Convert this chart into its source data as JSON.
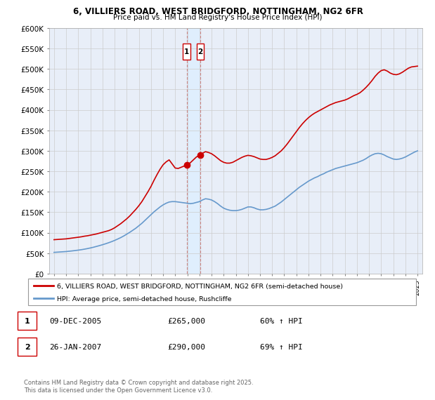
{
  "title1": "6, VILLIERS ROAD, WEST BRIDGFORD, NOTTINGHAM, NG2 6FR",
  "title2": "Price paid vs. HM Land Registry's House Price Index (HPI)",
  "legend_line1": "6, VILLIERS ROAD, WEST BRIDGFORD, NOTTINGHAM, NG2 6FR (semi-detached house)",
  "legend_line2": "HPI: Average price, semi-detached house, Rushcliffe",
  "footnote": "Contains HM Land Registry data © Crown copyright and database right 2025.\nThis data is licensed under the Open Government Licence v3.0.",
  "sale1_label": "1",
  "sale1_date": "09-DEC-2005",
  "sale1_price": "£265,000",
  "sale1_hpi": "60% ↑ HPI",
  "sale2_label": "2",
  "sale2_date": "26-JAN-2007",
  "sale2_price": "£290,000",
  "sale2_hpi": "69% ↑ HPI",
  "red_color": "#cc0000",
  "blue_color": "#6699cc",
  "background_color": "#e8eef8",
  "grid_color": "#cccccc",
  "ylim": [
    0,
    600000
  ],
  "xlim_start": 1994.6,
  "xlim_end": 2025.4,
  "sale1_x": 2005.94,
  "sale1_y": 265000,
  "sale2_x": 2007.07,
  "sale2_y": 290000,
  "red_x": [
    1995.0,
    1995.25,
    1995.5,
    1995.75,
    1996.0,
    1996.25,
    1996.5,
    1996.75,
    1997.0,
    1997.25,
    1997.5,
    1997.75,
    1998.0,
    1998.25,
    1998.5,
    1998.75,
    1999.0,
    1999.25,
    1999.5,
    1999.75,
    2000.0,
    2000.25,
    2000.5,
    2000.75,
    2001.0,
    2001.25,
    2001.5,
    2001.75,
    2002.0,
    2002.25,
    2002.5,
    2002.75,
    2003.0,
    2003.25,
    2003.5,
    2003.75,
    2004.0,
    2004.25,
    2004.5,
    2004.75,
    2005.0,
    2005.25,
    2005.5,
    2005.75,
    2005.94,
    2006.0,
    2006.25,
    2006.5,
    2006.75,
    2007.07,
    2007.25,
    2007.5,
    2007.75,
    2008.0,
    2008.25,
    2008.5,
    2008.75,
    2009.0,
    2009.25,
    2009.5,
    2009.75,
    2010.0,
    2010.25,
    2010.5,
    2010.75,
    2011.0,
    2011.25,
    2011.5,
    2011.75,
    2012.0,
    2012.25,
    2012.5,
    2012.75,
    2013.0,
    2013.25,
    2013.5,
    2013.75,
    2014.0,
    2014.25,
    2014.5,
    2014.75,
    2015.0,
    2015.25,
    2015.5,
    2015.75,
    2016.0,
    2016.25,
    2016.5,
    2016.75,
    2017.0,
    2017.25,
    2017.5,
    2017.75,
    2018.0,
    2018.25,
    2018.5,
    2018.75,
    2019.0,
    2019.25,
    2019.5,
    2019.75,
    2020.0,
    2020.25,
    2020.5,
    2020.75,
    2021.0,
    2021.25,
    2021.5,
    2021.75,
    2022.0,
    2022.25,
    2022.5,
    2022.75,
    2023.0,
    2023.25,
    2023.5,
    2023.75,
    2024.0,
    2024.25,
    2024.5,
    2024.75,
    2025.0
  ],
  "red_y": [
    83000,
    83500,
    84000,
    84500,
    85000,
    86000,
    87000,
    88000,
    89000,
    90000,
    91500,
    92500,
    94000,
    95500,
    97000,
    99000,
    101000,
    103000,
    105000,
    108000,
    112000,
    117000,
    122000,
    128000,
    134000,
    141000,
    149000,
    157000,
    166000,
    176000,
    188000,
    200000,
    213000,
    228000,
    242000,
    255000,
    266000,
    273000,
    278000,
    268000,
    258000,
    257000,
    260000,
    263000,
    265000,
    267000,
    271000,
    278000,
    285000,
    290000,
    294000,
    298000,
    296000,
    293000,
    288000,
    282000,
    276000,
    272000,
    270000,
    270000,
    272000,
    276000,
    280000,
    284000,
    287000,
    289000,
    288000,
    286000,
    283000,
    280000,
    279000,
    279000,
    281000,
    284000,
    288000,
    294000,
    300000,
    308000,
    317000,
    327000,
    337000,
    347000,
    357000,
    366000,
    374000,
    381000,
    387000,
    392000,
    396000,
    400000,
    404000,
    408000,
    412000,
    415000,
    418000,
    420000,
    422000,
    424000,
    427000,
    431000,
    435000,
    438000,
    442000,
    448000,
    455000,
    463000,
    472000,
    482000,
    490000,
    496000,
    498000,
    495000,
    490000,
    487000,
    486000,
    488000,
    492000,
    497000,
    502000,
    505000,
    506000,
    507000
  ],
  "blue_x": [
    1995.0,
    1995.25,
    1995.5,
    1995.75,
    1996.0,
    1996.25,
    1996.5,
    1996.75,
    1997.0,
    1997.25,
    1997.5,
    1997.75,
    1998.0,
    1998.25,
    1998.5,
    1998.75,
    1999.0,
    1999.25,
    1999.5,
    1999.75,
    2000.0,
    2000.25,
    2000.5,
    2000.75,
    2001.0,
    2001.25,
    2001.5,
    2001.75,
    2002.0,
    2002.25,
    2002.5,
    2002.75,
    2003.0,
    2003.25,
    2003.5,
    2003.75,
    2004.0,
    2004.25,
    2004.5,
    2004.75,
    2005.0,
    2005.25,
    2005.5,
    2005.75,
    2006.0,
    2006.25,
    2006.5,
    2006.75,
    2007.0,
    2007.25,
    2007.5,
    2007.75,
    2008.0,
    2008.25,
    2008.5,
    2008.75,
    2009.0,
    2009.25,
    2009.5,
    2009.75,
    2010.0,
    2010.25,
    2010.5,
    2010.75,
    2011.0,
    2011.25,
    2011.5,
    2011.75,
    2012.0,
    2012.25,
    2012.5,
    2012.75,
    2013.0,
    2013.25,
    2013.5,
    2013.75,
    2014.0,
    2014.25,
    2014.5,
    2014.75,
    2015.0,
    2015.25,
    2015.5,
    2015.75,
    2016.0,
    2016.25,
    2016.5,
    2016.75,
    2017.0,
    2017.25,
    2017.5,
    2017.75,
    2018.0,
    2018.25,
    2018.5,
    2018.75,
    2019.0,
    2019.25,
    2019.5,
    2019.75,
    2020.0,
    2020.25,
    2020.5,
    2020.75,
    2021.0,
    2021.25,
    2021.5,
    2021.75,
    2022.0,
    2022.25,
    2022.5,
    2022.75,
    2023.0,
    2023.25,
    2023.5,
    2023.75,
    2024.0,
    2024.25,
    2024.5,
    2024.75,
    2025.0
  ],
  "blue_y": [
    52000,
    52500,
    53000,
    53500,
    54000,
    54800,
    55600,
    56500,
    57500,
    58500,
    59800,
    61200,
    62800,
    64500,
    66500,
    68500,
    70700,
    73000,
    75500,
    78200,
    81200,
    84500,
    88000,
    92000,
    96500,
    101000,
    106000,
    111000,
    117000,
    123000,
    130000,
    137000,
    144000,
    151000,
    157000,
    163000,
    168000,
    172000,
    175000,
    176000,
    176000,
    175000,
    174000,
    173000,
    172000,
    171000,
    172000,
    174000,
    176000,
    180000,
    183000,
    182000,
    180000,
    176000,
    171000,
    165000,
    160000,
    157000,
    155000,
    154000,
    154000,
    155000,
    157000,
    160000,
    163000,
    163000,
    161000,
    158000,
    156000,
    156000,
    157000,
    159000,
    162000,
    165000,
    170000,
    175000,
    181000,
    187000,
    193000,
    199000,
    205000,
    211000,
    216000,
    221000,
    226000,
    230000,
    234000,
    237000,
    241000,
    244000,
    248000,
    251000,
    254000,
    257000,
    259000,
    261000,
    263000,
    265000,
    267000,
    269000,
    271000,
    274000,
    277000,
    281000,
    286000,
    290000,
    293000,
    294000,
    293000,
    290000,
    286000,
    283000,
    280000,
    279000,
    280000,
    282000,
    285000,
    289000,
    293000,
    297000,
    300000
  ]
}
